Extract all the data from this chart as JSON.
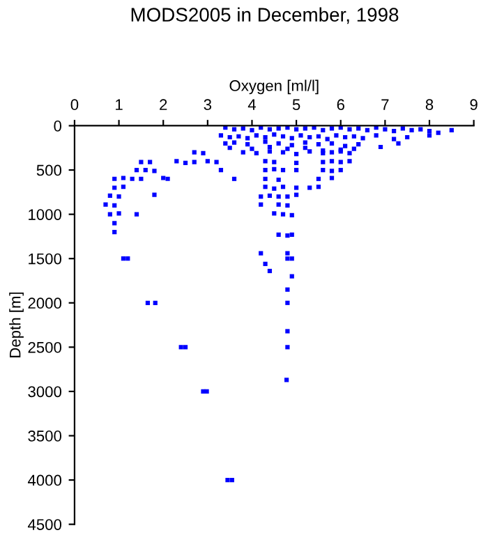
{
  "chart_data": {
    "type": "scatter",
    "title": "MODS2005 in December, 1998",
    "xlabel": "Oxygen [ml/l]",
    "ylabel": "Depth [m]",
    "xlim": [
      0,
      9
    ],
    "xticks": [
      0,
      1,
      2,
      3,
      4,
      5,
      6,
      7,
      8,
      9
    ],
    "ylim": [
      4500,
      0
    ],
    "yticks": [
      0,
      500,
      1000,
      1500,
      2000,
      2500,
      3000,
      3500,
      4000,
      4500
    ],
    "marker": "square",
    "grid": false,
    "series": [
      {
        "color": "#0000ff",
        "x": [
          3.4,
          3.6,
          3.8,
          4.0,
          4.2,
          4.4,
          4.6,
          4.8,
          5.0,
          5.2,
          5.4,
          5.6,
          5.8,
          6.0,
          6.2,
          6.4,
          6.6,
          6.8,
          7.0,
          7.2,
          7.4,
          7.6,
          7.8,
          8.0,
          8.2,
          8.5,
          3.3,
          3.5,
          3.7,
          3.9,
          4.1,
          4.3,
          4.5,
          4.7,
          4.9,
          5.1,
          5.3,
          5.5,
          5.7,
          5.9,
          6.1,
          6.3,
          6.5,
          6.8,
          7.2,
          7.5,
          8.0,
          3.4,
          3.6,
          3.9,
          4.3,
          4.6,
          4.9,
          5.2,
          5.5,
          5.8,
          6.1,
          6.4,
          6.9,
          7.3,
          3.5,
          4.0,
          4.4,
          4.8,
          5.2,
          5.6,
          6.0,
          6.3,
          2.7,
          2.9,
          3.8,
          4.1,
          4.4,
          4.7,
          5.0,
          5.3,
          5.6,
          5.8,
          6.0,
          6.2,
          1.5,
          1.7,
          2.3,
          2.5,
          2.7,
          3.0,
          3.2,
          4.3,
          4.5,
          5.0,
          5.6,
          5.8,
          6.0,
          6.2,
          1.4,
          1.6,
          1.8,
          2.1,
          3.3,
          4.3,
          4.5,
          4.7,
          5.0,
          5.6,
          5.8,
          6.0,
          0.9,
          1.1,
          1.3,
          1.5,
          2.0,
          3.6,
          4.3,
          4.6,
          5.5,
          5.8,
          0.9,
          1.1,
          4.3,
          4.5,
          4.7,
          5.0,
          5.3,
          5.5,
          0.8,
          1.0,
          1.8,
          4.2,
          4.4,
          4.6,
          4.8,
          5.0,
          0.7,
          0.9,
          4.2,
          4.6,
          4.8,
          0.8,
          1.0,
          1.4,
          4.5,
          4.7,
          4.9,
          0.9,
          0.9,
          4.6,
          4.8,
          4.9,
          1.1,
          1.2,
          4.2,
          4.3,
          4.8,
          4.9,
          4.4,
          4.8,
          4.9,
          4.8,
          1.65,
          1.82,
          4.8,
          4.8,
          2.4,
          2.5,
          4.8,
          4.78,
          2.9,
          2.98,
          3.45,
          3.55
        ],
        "values": [
          20,
          40,
          30,
          50,
          20,
          40,
          30,
          20,
          40,
          30,
          20,
          50,
          30,
          20,
          40,
          30,
          50,
          20,
          40,
          60,
          30,
          50,
          40,
          60,
          80,
          50,
          110,
          130,
          120,
          140,
          110,
          130,
          100,
          120,
          140,
          110,
          130,
          120,
          150,
          110,
          130,
          120,
          140,
          110,
          150,
          130,
          110,
          200,
          190,
          210,
          180,
          200,
          220,
          190,
          210,
          200,
          230,
          210,
          240,
          200,
          250,
          260,
          240,
          260,
          250,
          280,
          270,
          260,
          300,
          310,
          300,
          310,
          290,
          300,
          320,
          290,
          310,
          300,
          290,
          310,
          410,
          410,
          400,
          420,
          410,
          400,
          410,
          400,
          410,
          420,
          410,
          400,
          410,
          400,
          500,
          500,
          510,
          600,
          500,
          500,
          490,
          500,
          500,
          500,
          510,
          500,
          600,
          590,
          600,
          600,
          590,
          600,
          600,
          610,
          600,
          590,
          700,
          690,
          690,
          710,
          690,
          700,
          700,
          690,
          790,
          800,
          780,
          800,
          790,
          800,
          800,
          780,
          890,
          900,
          890,
          890,
          900,
          1000,
          990,
          1000,
          990,
          1000,
          1010,
          1100,
          1200,
          1230,
          1240,
          1230,
          1500,
          1500,
          1440,
          1560,
          1500,
          1500,
          1640,
          1440,
          1700,
          1850,
          2000,
          2000,
          2000,
          2320,
          2500,
          2500,
          2500,
          2870,
          3000,
          3000,
          4000,
          4000
        ]
      }
    ]
  }
}
